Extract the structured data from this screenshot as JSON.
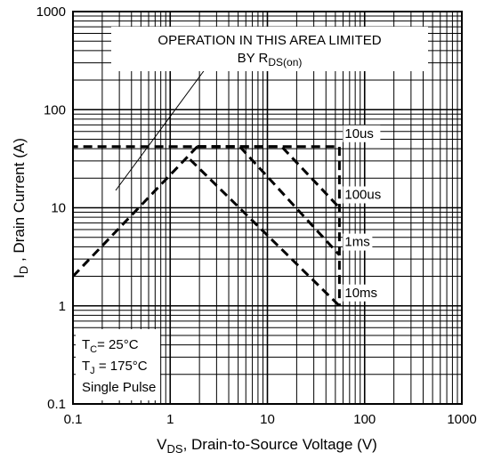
{
  "chart_data": {
    "type": "line",
    "xscale": "log",
    "yscale": "log",
    "xlim": [
      0.1,
      1000
    ],
    "ylim": [
      0.1,
      1000
    ],
    "grid": true,
    "x_ticks": [
      "0.1",
      "1",
      "10",
      "100",
      "1000"
    ],
    "y_ticks": [
      "0.1",
      "1",
      "10",
      "100",
      "1000"
    ],
    "xlabel": {
      "main": "V",
      "sub": "DS",
      "rest": ", Drain-to-Source Voltage (V)"
    },
    "ylabel": {
      "main": "I",
      "sub": "D",
      "rest": " , Drain Current (A)"
    },
    "annotation": {
      "line1": "OPERATION IN THIS AREA LIMITED",
      "line2_main": "BY R",
      "line2_sub": "DS(on)"
    },
    "conditions": [
      {
        "main": "T",
        "sub": "C",
        "rest": "= 25°C"
      },
      {
        "main": "T",
        "sub": "J",
        "rest": " = 175°C"
      },
      {
        "main": "Single Pulse",
        "sub": "",
        "rest": ""
      }
    ],
    "series": [
      {
        "name": "10us",
        "x": [
          1.9,
          55,
          55
        ],
        "y": [
          42,
          42,
          1
        ]
      },
      {
        "name": "100us",
        "x": [
          1.9,
          14,
          55
        ],
        "y": [
          42,
          42,
          10
        ]
      },
      {
        "name": "1ms",
        "x": [
          1.9,
          5.2,
          55
        ],
        "y": [
          42,
          42,
          3.3
        ]
      },
      {
        "name": "10ms",
        "x": [
          1.6,
          55
        ],
        "y": [
          31,
          1
        ]
      },
      {
        "name": "R_DS(on) limit",
        "x": [
          0.1,
          1.9,
          0.1
        ],
        "y": [
          2,
          42,
          42
        ]
      }
    ],
    "curve_labels": [
      "10us",
      "100us",
      "1ms",
      "10ms"
    ]
  },
  "colors": {
    "ink": "#000000",
    "background": "#ffffff"
  }
}
